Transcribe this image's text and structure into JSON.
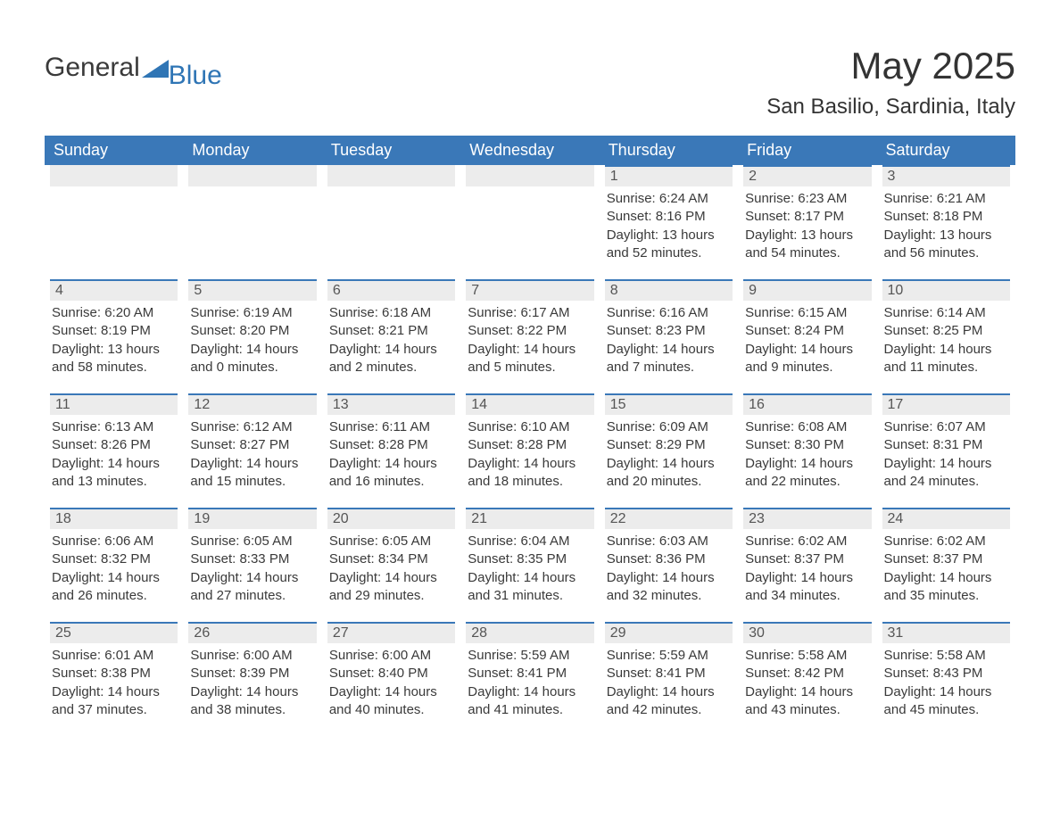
{
  "logo": {
    "text1": "General",
    "text2": "Blue",
    "icon_color": "#2f75b5"
  },
  "title": "May 2025",
  "location": "San Basilio, Sardinia, Italy",
  "colors": {
    "header_bg": "#3a78b8",
    "header_text": "#ffffff",
    "daybar_bg": "#ececec",
    "daybar_border": "#3a78b8",
    "body_bg": "#ffffff",
    "text": "#3a3a3a"
  },
  "day_headers": [
    "Sunday",
    "Monday",
    "Tuesday",
    "Wednesday",
    "Thursday",
    "Friday",
    "Saturday"
  ],
  "weeks": [
    [
      null,
      null,
      null,
      null,
      {
        "n": "1",
        "sunrise": "Sunrise: 6:24 AM",
        "sunset": "Sunset: 8:16 PM",
        "daylight": "Daylight: 13 hours and 52 minutes."
      },
      {
        "n": "2",
        "sunrise": "Sunrise: 6:23 AM",
        "sunset": "Sunset: 8:17 PM",
        "daylight": "Daylight: 13 hours and 54 minutes."
      },
      {
        "n": "3",
        "sunrise": "Sunrise: 6:21 AM",
        "sunset": "Sunset: 8:18 PM",
        "daylight": "Daylight: 13 hours and 56 minutes."
      }
    ],
    [
      {
        "n": "4",
        "sunrise": "Sunrise: 6:20 AM",
        "sunset": "Sunset: 8:19 PM",
        "daylight": "Daylight: 13 hours and 58 minutes."
      },
      {
        "n": "5",
        "sunrise": "Sunrise: 6:19 AM",
        "sunset": "Sunset: 8:20 PM",
        "daylight": "Daylight: 14 hours and 0 minutes."
      },
      {
        "n": "6",
        "sunrise": "Sunrise: 6:18 AM",
        "sunset": "Sunset: 8:21 PM",
        "daylight": "Daylight: 14 hours and 2 minutes."
      },
      {
        "n": "7",
        "sunrise": "Sunrise: 6:17 AM",
        "sunset": "Sunset: 8:22 PM",
        "daylight": "Daylight: 14 hours and 5 minutes."
      },
      {
        "n": "8",
        "sunrise": "Sunrise: 6:16 AM",
        "sunset": "Sunset: 8:23 PM",
        "daylight": "Daylight: 14 hours and 7 minutes."
      },
      {
        "n": "9",
        "sunrise": "Sunrise: 6:15 AM",
        "sunset": "Sunset: 8:24 PM",
        "daylight": "Daylight: 14 hours and 9 minutes."
      },
      {
        "n": "10",
        "sunrise": "Sunrise: 6:14 AM",
        "sunset": "Sunset: 8:25 PM",
        "daylight": "Daylight: 14 hours and 11 minutes."
      }
    ],
    [
      {
        "n": "11",
        "sunrise": "Sunrise: 6:13 AM",
        "sunset": "Sunset: 8:26 PM",
        "daylight": "Daylight: 14 hours and 13 minutes."
      },
      {
        "n": "12",
        "sunrise": "Sunrise: 6:12 AM",
        "sunset": "Sunset: 8:27 PM",
        "daylight": "Daylight: 14 hours and 15 minutes."
      },
      {
        "n": "13",
        "sunrise": "Sunrise: 6:11 AM",
        "sunset": "Sunset: 8:28 PM",
        "daylight": "Daylight: 14 hours and 16 minutes."
      },
      {
        "n": "14",
        "sunrise": "Sunrise: 6:10 AM",
        "sunset": "Sunset: 8:28 PM",
        "daylight": "Daylight: 14 hours and 18 minutes."
      },
      {
        "n": "15",
        "sunrise": "Sunrise: 6:09 AM",
        "sunset": "Sunset: 8:29 PM",
        "daylight": "Daylight: 14 hours and 20 minutes."
      },
      {
        "n": "16",
        "sunrise": "Sunrise: 6:08 AM",
        "sunset": "Sunset: 8:30 PM",
        "daylight": "Daylight: 14 hours and 22 minutes."
      },
      {
        "n": "17",
        "sunrise": "Sunrise: 6:07 AM",
        "sunset": "Sunset: 8:31 PM",
        "daylight": "Daylight: 14 hours and 24 minutes."
      }
    ],
    [
      {
        "n": "18",
        "sunrise": "Sunrise: 6:06 AM",
        "sunset": "Sunset: 8:32 PM",
        "daylight": "Daylight: 14 hours and 26 minutes."
      },
      {
        "n": "19",
        "sunrise": "Sunrise: 6:05 AM",
        "sunset": "Sunset: 8:33 PM",
        "daylight": "Daylight: 14 hours and 27 minutes."
      },
      {
        "n": "20",
        "sunrise": "Sunrise: 6:05 AM",
        "sunset": "Sunset: 8:34 PM",
        "daylight": "Daylight: 14 hours and 29 minutes."
      },
      {
        "n": "21",
        "sunrise": "Sunrise: 6:04 AM",
        "sunset": "Sunset: 8:35 PM",
        "daylight": "Daylight: 14 hours and 31 minutes."
      },
      {
        "n": "22",
        "sunrise": "Sunrise: 6:03 AM",
        "sunset": "Sunset: 8:36 PM",
        "daylight": "Daylight: 14 hours and 32 minutes."
      },
      {
        "n": "23",
        "sunrise": "Sunrise: 6:02 AM",
        "sunset": "Sunset: 8:37 PM",
        "daylight": "Daylight: 14 hours and 34 minutes."
      },
      {
        "n": "24",
        "sunrise": "Sunrise: 6:02 AM",
        "sunset": "Sunset: 8:37 PM",
        "daylight": "Daylight: 14 hours and 35 minutes."
      }
    ],
    [
      {
        "n": "25",
        "sunrise": "Sunrise: 6:01 AM",
        "sunset": "Sunset: 8:38 PM",
        "daylight": "Daylight: 14 hours and 37 minutes."
      },
      {
        "n": "26",
        "sunrise": "Sunrise: 6:00 AM",
        "sunset": "Sunset: 8:39 PM",
        "daylight": "Daylight: 14 hours and 38 minutes."
      },
      {
        "n": "27",
        "sunrise": "Sunrise: 6:00 AM",
        "sunset": "Sunset: 8:40 PM",
        "daylight": "Daylight: 14 hours and 40 minutes."
      },
      {
        "n": "28",
        "sunrise": "Sunrise: 5:59 AM",
        "sunset": "Sunset: 8:41 PM",
        "daylight": "Daylight: 14 hours and 41 minutes."
      },
      {
        "n": "29",
        "sunrise": "Sunrise: 5:59 AM",
        "sunset": "Sunset: 8:41 PM",
        "daylight": "Daylight: 14 hours and 42 minutes."
      },
      {
        "n": "30",
        "sunrise": "Sunrise: 5:58 AM",
        "sunset": "Sunset: 8:42 PM",
        "daylight": "Daylight: 14 hours and 43 minutes."
      },
      {
        "n": "31",
        "sunrise": "Sunrise: 5:58 AM",
        "sunset": "Sunset: 8:43 PM",
        "daylight": "Daylight: 14 hours and 45 minutes."
      }
    ]
  ]
}
